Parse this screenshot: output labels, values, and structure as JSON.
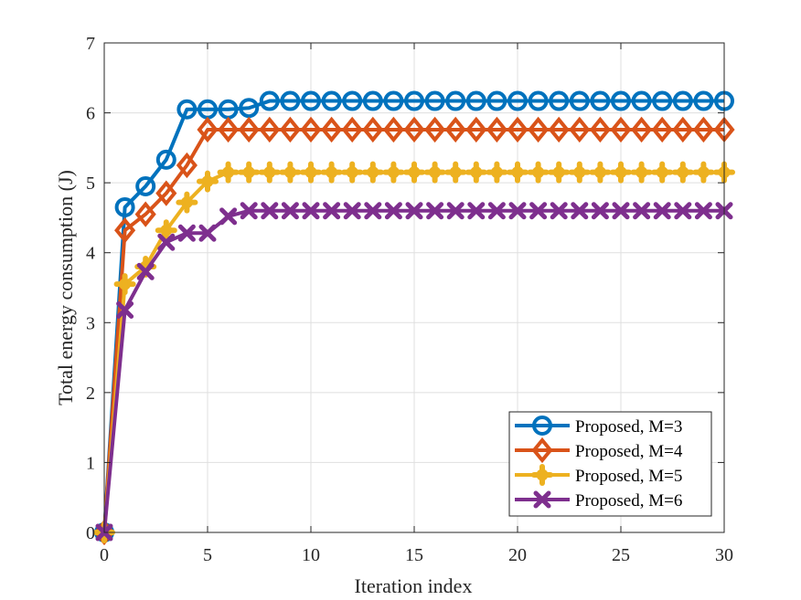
{
  "chart_data": {
    "type": "line",
    "title": "",
    "xlabel": "Iteration index",
    "ylabel": "Total energy consumption (J)",
    "xlim": [
      0,
      30
    ],
    "ylim": [
      0,
      7
    ],
    "xticks": [
      0,
      5,
      10,
      15,
      20,
      25,
      30
    ],
    "yticks": [
      0,
      1,
      2,
      3,
      4,
      5,
      6,
      7
    ],
    "grid": true,
    "legend_position": "bottom-right",
    "x": [
      0,
      1,
      2,
      3,
      4,
      5,
      6,
      7,
      8,
      9,
      10,
      11,
      12,
      13,
      14,
      15,
      16,
      17,
      18,
      19,
      20,
      21,
      22,
      23,
      24,
      25,
      26,
      27,
      28,
      29,
      30
    ],
    "series": [
      {
        "name": "Proposed, M=3",
        "color": "#0072BD",
        "marker": "circle",
        "values": [
          0,
          4.65,
          4.95,
          5.33,
          6.05,
          6.05,
          6.05,
          6.07,
          6.17,
          6.17,
          6.17,
          6.17,
          6.17,
          6.17,
          6.17,
          6.17,
          6.17,
          6.17,
          6.17,
          6.17,
          6.17,
          6.17,
          6.17,
          6.17,
          6.17,
          6.17,
          6.17,
          6.17,
          6.17,
          6.17,
          6.17
        ]
      },
      {
        "name": "Proposed, M=4",
        "color": "#D95319",
        "marker": "diamond",
        "values": [
          0,
          4.32,
          4.55,
          4.85,
          5.25,
          5.76,
          5.76,
          5.76,
          5.76,
          5.76,
          5.76,
          5.76,
          5.76,
          5.76,
          5.76,
          5.76,
          5.76,
          5.76,
          5.76,
          5.76,
          5.76,
          5.76,
          5.76,
          5.76,
          5.76,
          5.76,
          5.76,
          5.76,
          5.76,
          5.76,
          5.76
        ]
      },
      {
        "name": "Proposed, M=5",
        "color": "#EDB120",
        "marker": "plus-filled",
        "values": [
          0,
          3.55,
          3.8,
          4.32,
          4.72,
          5.02,
          5.15,
          5.15,
          5.15,
          5.15,
          5.15,
          5.15,
          5.15,
          5.15,
          5.15,
          5.15,
          5.15,
          5.15,
          5.15,
          5.15,
          5.15,
          5.15,
          5.15,
          5.15,
          5.15,
          5.15,
          5.15,
          5.15,
          5.15,
          5.15,
          5.15
        ]
      },
      {
        "name": "Proposed, M=6",
        "color": "#7E2F8E",
        "marker": "x",
        "values": [
          0,
          3.18,
          3.73,
          4.15,
          4.28,
          4.28,
          4.52,
          4.6,
          4.6,
          4.6,
          4.6,
          4.6,
          4.6,
          4.6,
          4.6,
          4.6,
          4.6,
          4.6,
          4.6,
          4.6,
          4.6,
          4.6,
          4.6,
          4.6,
          4.6,
          4.6,
          4.6,
          4.6,
          4.6,
          4.6,
          4.6
        ]
      }
    ]
  }
}
